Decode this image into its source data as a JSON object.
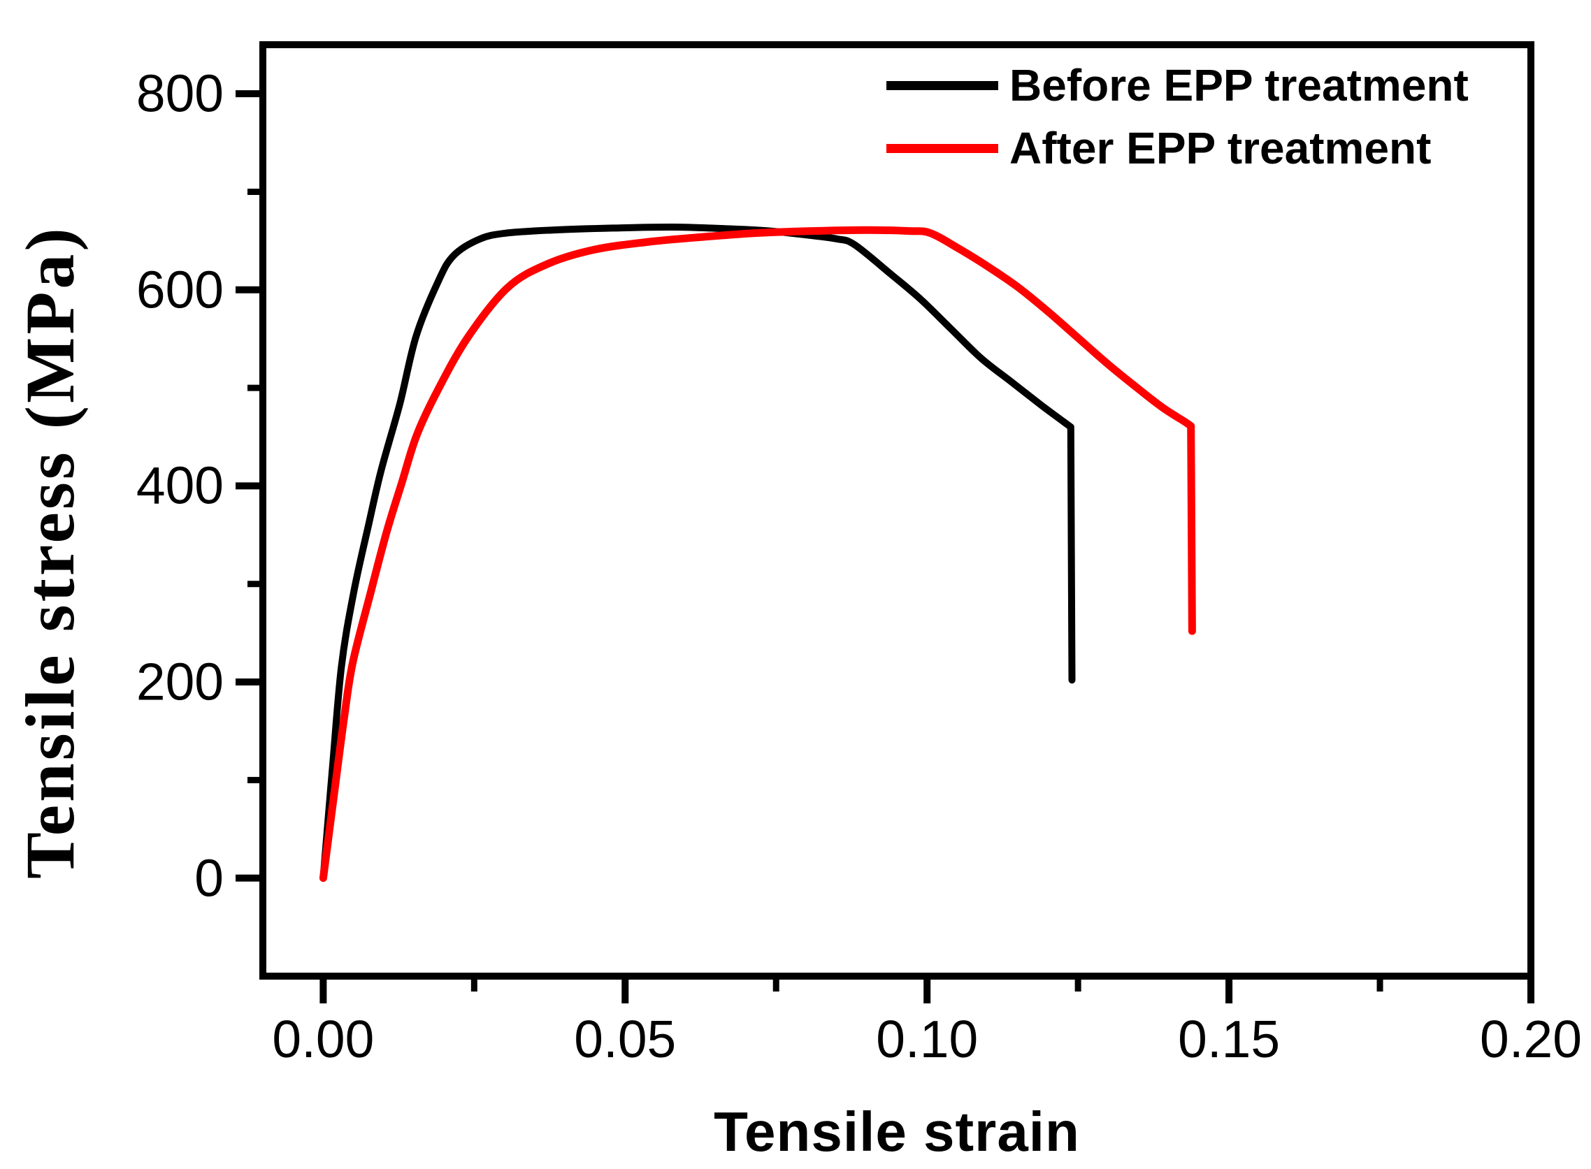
{
  "chart_data": {
    "type": "line",
    "title": "",
    "xlabel": "Tensile strain",
    "ylabel": "Tensile stress (MPa)",
    "xlim": [
      -0.01,
      0.2
    ],
    "ylim": [
      -100,
      850
    ],
    "grid": false,
    "legend_position": "top-right-inside",
    "axis_color": "#000000",
    "background_color": "#ffffff",
    "x_major_ticks": [
      {
        "value": 0.0,
        "label": "0.00"
      },
      {
        "value": 0.05,
        "label": "0.05"
      },
      {
        "value": 0.1,
        "label": "0.10"
      },
      {
        "value": 0.15,
        "label": "0.15"
      },
      {
        "value": 0.2,
        "label": "0.20"
      }
    ],
    "x_minor_ticks": [
      0.025,
      0.075,
      0.125,
      0.175
    ],
    "y_major_ticks": [
      {
        "value": 0,
        "label": "0"
      },
      {
        "value": 200,
        "label": "200"
      },
      {
        "value": 400,
        "label": "400"
      },
      {
        "value": 600,
        "label": "600"
      },
      {
        "value": 800,
        "label": "800"
      }
    ],
    "y_minor_ticks": [
      100,
      300,
      500,
      700
    ],
    "series": [
      {
        "name": "Before EPP treatment",
        "color": "#000000",
        "stroke_width": 10,
        "points": [
          [
            0.0,
            0
          ],
          [
            0.0015,
            110
          ],
          [
            0.003,
            215
          ],
          [
            0.005,
            290
          ],
          [
            0.0075,
            360
          ],
          [
            0.0096,
            416
          ],
          [
            0.0127,
            484
          ],
          [
            0.0154,
            553
          ],
          [
            0.019,
            608
          ],
          [
            0.0216,
            635
          ],
          [
            0.026,
            652
          ],
          [
            0.0305,
            658
          ],
          [
            0.038,
            661
          ],
          [
            0.048,
            663
          ],
          [
            0.058,
            664
          ],
          [
            0.068,
            662
          ],
          [
            0.074,
            660
          ],
          [
            0.08,
            656
          ],
          [
            0.085,
            652
          ],
          [
            0.088,
            646
          ],
          [
            0.094,
            616
          ],
          [
            0.099,
            590
          ],
          [
            0.104,
            560
          ],
          [
            0.109,
            530
          ],
          [
            0.114,
            506
          ],
          [
            0.119,
            482
          ],
          [
            0.1225,
            466
          ],
          [
            0.1238,
            460
          ]
        ],
        "fracture_drop": [
          [
            0.1238,
            460
          ],
          [
            0.124,
            202
          ]
        ]
      },
      {
        "name": "After EPP treatment",
        "color": "#ff0000",
        "stroke_width": 11,
        "points": [
          [
            0.0,
            0
          ],
          [
            0.002,
            95
          ],
          [
            0.0035,
            165
          ],
          [
            0.0049,
            220
          ],
          [
            0.0078,
            290
          ],
          [
            0.0105,
            353
          ],
          [
            0.013,
            403
          ],
          [
            0.0155,
            452
          ],
          [
            0.019,
            498
          ],
          [
            0.024,
            552
          ],
          [
            0.0305,
            602
          ],
          [
            0.037,
            626
          ],
          [
            0.0449,
            641
          ],
          [
            0.054,
            649
          ],
          [
            0.063,
            654
          ],
          [
            0.072,
            658
          ],
          [
            0.081,
            660
          ],
          [
            0.09,
            661
          ],
          [
            0.097,
            660
          ],
          [
            0.1005,
            658
          ],
          [
            0.105,
            643
          ],
          [
            0.11,
            624
          ],
          [
            0.115,
            603
          ],
          [
            0.12,
            578
          ],
          [
            0.125,
            551
          ],
          [
            0.13,
            524
          ],
          [
            0.135,
            499
          ],
          [
            0.139,
            480
          ],
          [
            0.1428,
            465
          ],
          [
            0.1437,
            461
          ]
        ],
        "fracture_drop": [
          [
            0.1437,
            461
          ],
          [
            0.1439,
            252
          ]
        ]
      }
    ]
  }
}
